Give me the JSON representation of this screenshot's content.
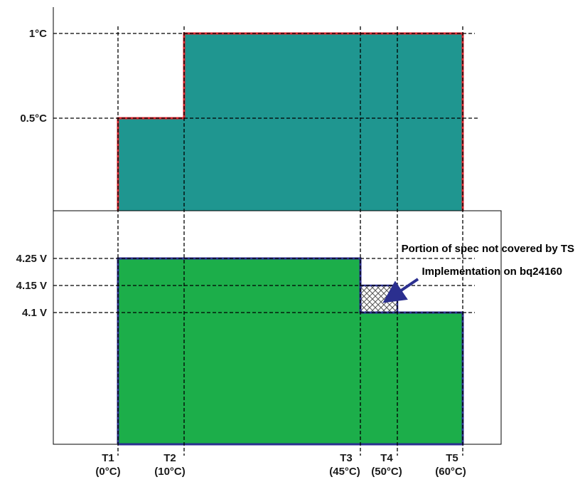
{
  "top_panel": {
    "y_labels": {
      "y_1c": "1°C",
      "y_05c": "0.5°C"
    },
    "fill_color": "#1f9690",
    "outline_color": "#d9262e"
  },
  "bottom_panel": {
    "y_labels": {
      "v425": "4.25 V",
      "v415": "4.15 V",
      "v41": "4.1 V"
    },
    "fill_color": "#1cae4a",
    "outline_color": "#2b2f8f",
    "annotation": {
      "line1": "Portion of spec not covered by TS",
      "line2": "Implementation on bq24160"
    }
  },
  "x_labels": [
    {
      "id": "T1",
      "name": "T1",
      "temp": "(0°C)"
    },
    {
      "id": "T2",
      "name": "T2",
      "temp": "(10°C)"
    },
    {
      "id": "T3",
      "name": "T3",
      "temp": "(45°C)"
    },
    {
      "id": "T4",
      "name": "T4",
      "temp": "(50°C)"
    },
    {
      "id": "T5",
      "name": "T5",
      "temp": "(60°C)"
    }
  ]
}
